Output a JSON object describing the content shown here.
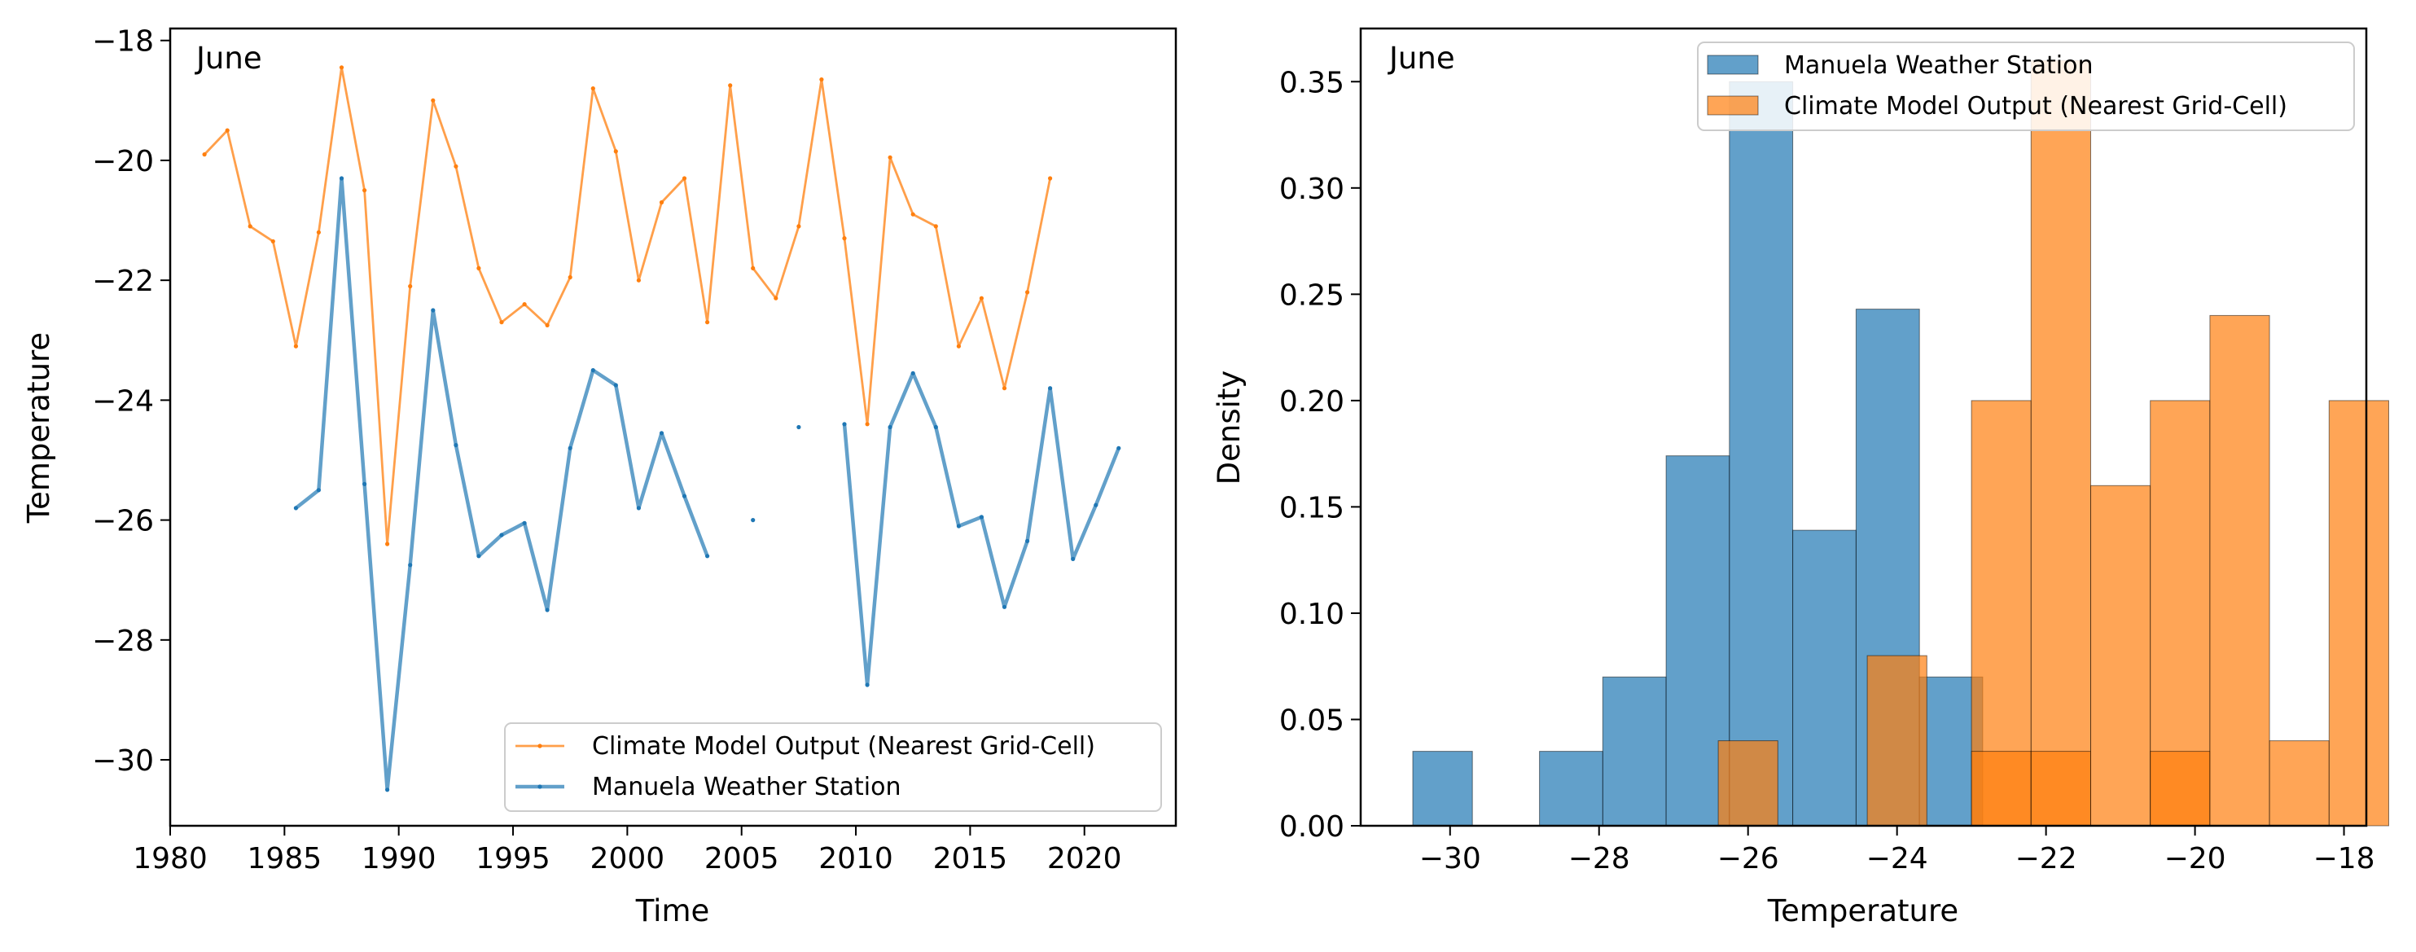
{
  "colors": {
    "station": "#1f77b4",
    "model": "#ff7f0e"
  },
  "chart_data": [
    {
      "type": "line",
      "panel_label": "June",
      "xlabel": "Time",
      "ylabel": "Temperature",
      "xlim": [
        1980,
        2024
      ],
      "ylim": [
        -31.1,
        -17.8
      ],
      "xticks": [
        1980,
        1985,
        1990,
        1995,
        2000,
        2005,
        2010,
        2015,
        2020
      ],
      "yticks": [
        -30,
        -28,
        -26,
        -24,
        -22,
        -20,
        -18
      ],
      "legend_position": "lower right",
      "series": [
        {
          "name": "Climate Model Output (Nearest Grid-Cell)",
          "color": "#ff7f0e",
          "x": [
            1981.5,
            1982.5,
            1983.5,
            1984.5,
            1985.5,
            1986.5,
            1987.5,
            1988.5,
            1989.5,
            1990.5,
            1991.5,
            1992.5,
            1993.5,
            1994.5,
            1995.5,
            1996.5,
            1997.5,
            1998.5,
            1999.5,
            2000.5,
            2001.5,
            2002.5,
            2003.5,
            2004.5,
            2005.5,
            2006.5,
            2007.5,
            2008.5,
            2009.5,
            2010.5,
            2011.5,
            2012.5,
            2013.5,
            2014.5,
            2015.5,
            2016.5,
            2017.5,
            2018.5
          ],
          "y": [
            -19.9,
            -19.5,
            -21.1,
            -21.35,
            -23.1,
            -21.2,
            -18.45,
            -20.5,
            -26.4,
            -22.1,
            -19.0,
            -20.1,
            -21.8,
            -22.7,
            -22.4,
            -22.75,
            -21.95,
            -18.8,
            -19.85,
            -22.0,
            -20.7,
            -20.3,
            -22.7,
            -18.75,
            -21.8,
            -22.3,
            -21.1,
            -18.65,
            -21.3,
            -24.4,
            -19.95,
            -20.9,
            -21.1,
            -23.1,
            -22.3,
            -23.8,
            -22.2,
            -20.3
          ]
        },
        {
          "name": "Manuela Weather Station",
          "color": "#1f77b4",
          "x": [
            1985.5,
            1986.5,
            1987.5,
            1988.5,
            1989.5,
            1990.5,
            1991.5,
            1992.5,
            1993.5,
            1994.5,
            1995.5,
            1996.5,
            1997.5,
            1998.5,
            1999.5,
            2000.5,
            2001.5,
            2002.5,
            2003.5,
            2004.5,
            2005.5,
            2006.5,
            2007.5,
            2008.5,
            2009.5,
            2010.5,
            2011.5,
            2012.5,
            2013.5,
            2014.5,
            2015.5,
            2016.5,
            2017.5,
            2018.5,
            2019.5,
            2020.5,
            2021.5
          ],
          "y": [
            -25.8,
            -25.5,
            -20.3,
            -25.4,
            -30.5,
            -26.75,
            -22.5,
            -24.75,
            -26.6,
            -26.25,
            -26.05,
            -27.5,
            -24.8,
            -23.5,
            -23.75,
            -25.8,
            -24.55,
            -25.6,
            -26.6,
            null,
            -26.0,
            null,
            -24.45,
            null,
            -24.4,
            -28.75,
            -24.45,
            -23.55,
            -24.45,
            -26.1,
            -25.95,
            -27.45,
            -26.35,
            -23.8,
            -26.65,
            -25.75,
            -24.8
          ]
        }
      ]
    },
    {
      "type": "histogram",
      "panel_label": "June",
      "xlabel": "Temperature",
      "ylabel": "Density",
      "xlim": [
        -31.2,
        -17.7
      ],
      "ylim": [
        0,
        0.375
      ],
      "xticks": [
        -30,
        -28,
        -26,
        -24,
        -22,
        -20,
        -18
      ],
      "yticks": [
        "0.00",
        "0.05",
        "0.10",
        "0.15",
        "0.20",
        "0.25",
        "0.30",
        "0.35"
      ],
      "legend_position": "upper right",
      "series": [
        {
          "name": "Manuela Weather Station",
          "color": "#1f77b4",
          "bins": [
            [
              -30.5,
              -29.7,
              0.035
            ],
            [
              -28.8,
              -27.95,
              0.035
            ],
            [
              -27.95,
              -27.1,
              0.07
            ],
            [
              -27.1,
              -26.25,
              0.174
            ],
            [
              -26.25,
              -25.4,
              0.35
            ],
            [
              -25.4,
              -24.55,
              0.139
            ],
            [
              -24.55,
              -23.7,
              0.243
            ],
            [
              -23.7,
              -22.85,
              0.07
            ]
          ]
        },
        {
          "name": "Climate Model Output (Nearest Grid-Cell)",
          "color": "#ff7f0e",
          "bins": [
            [
              -26.4,
              -25.6,
              0.04
            ],
            [
              -24.4,
              -23.6,
              0.08
            ],
            [
              -23.0,
              -22.2,
              0.2
            ],
            [
              -23.0,
              -22.2,
              0.035
            ],
            [
              -22.2,
              -21.4,
              0.36
            ],
            [
              -22.2,
              -21.4,
              0.035
            ],
            [
              -21.4,
              -20.6,
              0.16
            ],
            [
              -20.6,
              -19.8,
              0.2
            ],
            [
              -20.6,
              -19.8,
              0.035
            ],
            [
              -19.8,
              -19.0,
              0.24
            ],
            [
              -19.0,
              -18.2,
              0.04
            ],
            [
              -18.2,
              -17.4,
              0.2
            ]
          ]
        }
      ]
    }
  ]
}
